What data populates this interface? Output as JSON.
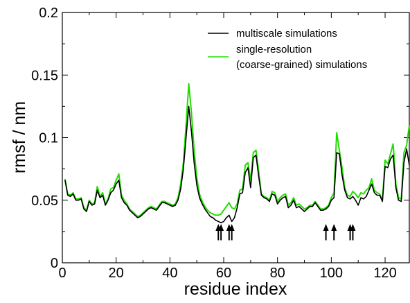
{
  "chart_data": {
    "type": "line",
    "title": "",
    "xlabel": "residue index",
    "ylabel": "rmsf / nm",
    "xlim": [
      0,
      129
    ],
    "ylim": [
      0,
      0.2
    ],
    "x_ticks": [
      0,
      20,
      40,
      60,
      80,
      100,
      120
    ],
    "x_tick_labels": [
      "0",
      "20",
      "40",
      "60",
      "80",
      "100",
      "120"
    ],
    "y_ticks": [
      0,
      0.05,
      0.1,
      0.15,
      0.2
    ],
    "y_tick_labels": [
      "0",
      "0.05",
      "0.1",
      "0.15",
      "0.2"
    ],
    "grid": false,
    "legend_position": "top-right",
    "legend_lines": [
      [
        "multiscale simulations"
      ],
      [
        "single-resolution",
        "(coarse-grained) simulations"
      ]
    ],
    "colors": {
      "multiscale": "#000000",
      "single_resolution": "#22dd00",
      "arrows": "#000000"
    },
    "series": [
      {
        "name": "multiscale simulations",
        "x": [
          1,
          2,
          3,
          4,
          5,
          6,
          7,
          8,
          9,
          10,
          11,
          12,
          13,
          14,
          15,
          16,
          17,
          18,
          19,
          20,
          21,
          22,
          23,
          24,
          25,
          26,
          27,
          28,
          29,
          30,
          31,
          32,
          33,
          34,
          35,
          36,
          37,
          38,
          39,
          40,
          41,
          42,
          43,
          44,
          45,
          46,
          47,
          48,
          49,
          50,
          51,
          52,
          53,
          54,
          55,
          56,
          57,
          58,
          59,
          60,
          61,
          62,
          63,
          64,
          65,
          66,
          67,
          68,
          69,
          70,
          71,
          72,
          73,
          74,
          75,
          76,
          77,
          78,
          79,
          80,
          81,
          82,
          83,
          84,
          85,
          86,
          87,
          88,
          89,
          90,
          91,
          92,
          93,
          94,
          95,
          96,
          97,
          98,
          99,
          100,
          101,
          102,
          103,
          104,
          105,
          106,
          107,
          108,
          109,
          110,
          111,
          112,
          113,
          114,
          115,
          116,
          117,
          118,
          119,
          120,
          121,
          122,
          123,
          124,
          125,
          126,
          127,
          128,
          129
        ],
        "values": [
          0.066,
          0.054,
          0.053,
          0.055,
          0.05,
          0.05,
          0.051,
          0.043,
          0.041,
          0.049,
          0.046,
          0.047,
          0.058,
          0.052,
          0.054,
          0.046,
          0.05,
          0.056,
          0.058,
          0.063,
          0.066,
          0.052,
          0.048,
          0.046,
          0.042,
          0.04,
          0.038,
          0.036,
          0.037,
          0.039,
          0.041,
          0.043,
          0.044,
          0.043,
          0.042,
          0.045,
          0.048,
          0.048,
          0.047,
          0.046,
          0.045,
          0.046,
          0.05,
          0.059,
          0.075,
          0.1,
          0.125,
          0.105,
          0.08,
          0.062,
          0.052,
          0.047,
          0.043,
          0.04,
          0.037,
          0.036,
          0.034,
          0.033,
          0.032,
          0.033,
          0.036,
          0.038,
          0.033,
          0.036,
          0.044,
          0.055,
          0.056,
          0.072,
          0.076,
          0.06,
          0.084,
          0.086,
          0.069,
          0.054,
          0.052,
          0.051,
          0.049,
          0.055,
          0.054,
          0.047,
          0.05,
          0.052,
          0.053,
          0.044,
          0.046,
          0.05,
          0.044,
          0.045,
          0.043,
          0.041,
          0.043,
          0.045,
          0.045,
          0.048,
          0.045,
          0.042,
          0.042,
          0.043,
          0.045,
          0.05,
          0.052,
          0.088,
          0.087,
          0.07,
          0.058,
          0.052,
          0.051,
          0.053,
          0.05,
          0.046,
          0.052,
          0.051,
          0.053,
          0.058,
          0.063,
          0.056,
          0.054,
          0.054,
          0.049,
          0.077,
          0.076,
          0.083,
          0.086,
          0.06,
          0.05,
          0.049,
          0.08,
          0.091,
          0.078
        ]
      },
      {
        "name": "single-resolution (coarse-grained) simulations",
        "x": [
          1,
          2,
          3,
          4,
          5,
          6,
          7,
          8,
          9,
          10,
          11,
          12,
          13,
          14,
          15,
          16,
          17,
          18,
          19,
          20,
          21,
          22,
          23,
          24,
          25,
          26,
          27,
          28,
          29,
          30,
          31,
          32,
          33,
          34,
          35,
          36,
          37,
          38,
          39,
          40,
          41,
          42,
          43,
          44,
          45,
          46,
          47,
          48,
          49,
          50,
          51,
          52,
          53,
          54,
          55,
          56,
          57,
          58,
          59,
          60,
          61,
          62,
          63,
          64,
          65,
          66,
          67,
          68,
          69,
          70,
          71,
          72,
          73,
          74,
          75,
          76,
          77,
          78,
          79,
          80,
          81,
          82,
          83,
          84,
          85,
          86,
          87,
          88,
          89,
          90,
          91,
          92,
          93,
          94,
          95,
          96,
          97,
          98,
          99,
          100,
          101,
          102,
          103,
          104,
          105,
          106,
          107,
          108,
          109,
          110,
          111,
          112,
          113,
          114,
          115,
          116,
          117,
          118,
          119,
          120,
          121,
          122,
          123,
          124,
          125,
          126,
          127,
          128,
          129
        ],
        "values": [
          0.067,
          0.055,
          0.054,
          0.056,
          0.051,
          0.051,
          0.052,
          0.044,
          0.042,
          0.05,
          0.047,
          0.048,
          0.061,
          0.053,
          0.056,
          0.047,
          0.051,
          0.059,
          0.06,
          0.066,
          0.071,
          0.054,
          0.05,
          0.047,
          0.043,
          0.041,
          0.039,
          0.037,
          0.038,
          0.04,
          0.042,
          0.044,
          0.045,
          0.044,
          0.043,
          0.046,
          0.049,
          0.049,
          0.048,
          0.047,
          0.046,
          0.047,
          0.052,
          0.063,
          0.08,
          0.11,
          0.143,
          0.12,
          0.09,
          0.068,
          0.055,
          0.049,
          0.045,
          0.042,
          0.04,
          0.039,
          0.038,
          0.038,
          0.039,
          0.042,
          0.045,
          0.048,
          0.044,
          0.043,
          0.047,
          0.058,
          0.059,
          0.078,
          0.08,
          0.066,
          0.088,
          0.09,
          0.073,
          0.055,
          0.053,
          0.052,
          0.05,
          0.057,
          0.056,
          0.049,
          0.052,
          0.054,
          0.055,
          0.046,
          0.048,
          0.052,
          0.046,
          0.047,
          0.045,
          0.043,
          0.044,
          0.046,
          0.046,
          0.049,
          0.046,
          0.043,
          0.043,
          0.044,
          0.046,
          0.052,
          0.056,
          0.104,
          0.09,
          0.076,
          0.06,
          0.054,
          0.053,
          0.057,
          0.055,
          0.052,
          0.056,
          0.055,
          0.058,
          0.06,
          0.067,
          0.058,
          0.056,
          0.055,
          0.05,
          0.082,
          0.079,
          0.087,
          0.095,
          0.063,
          0.052,
          0.051,
          0.088,
          0.094,
          0.11
        ]
      }
    ],
    "arrows": {
      "positions_x": [
        58,
        59,
        62,
        63,
        98,
        101,
        107,
        108
      ],
      "tail_y": 0.018,
      "head_y": 0.031
    }
  }
}
